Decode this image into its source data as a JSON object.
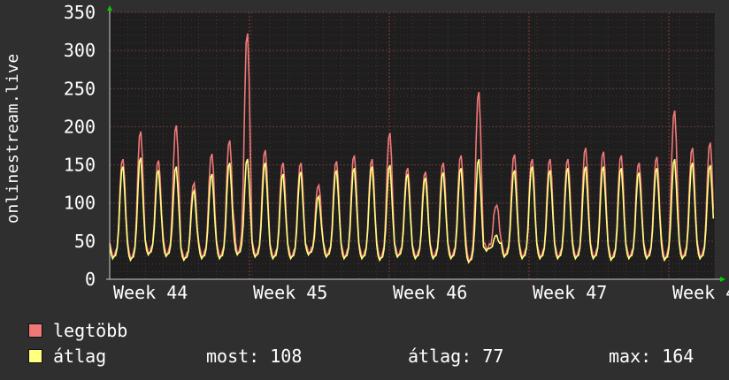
{
  "chart_data": {
    "type": "line",
    "ylabel": "onlinestream.live",
    "ylim": [
      0,
      350
    ],
    "yticks": [
      0,
      50,
      100,
      150,
      200,
      250,
      300,
      350
    ],
    "xlabels": [
      "Week 44",
      "Week 45",
      "Week 46",
      "Week 47",
      "Week 4"
    ],
    "grid": true,
    "colors": {
      "background": "#2f2f2f",
      "plot_bg": "#1e1e1e",
      "grid": "#6a3a3a",
      "axis_arrow": "#00cc00",
      "series_max": "#f07878",
      "series_avg": "#ffff80"
    },
    "daily": {
      "max_peaks": [
        160,
        197,
        158,
        205,
        128,
        167,
        185,
        328,
        172,
        155,
        155,
        125,
        157,
        165,
        160,
        195,
        148,
        143,
        155,
        165,
        250,
        98,
        166,
        160,
        160,
        160,
        175,
        170,
        165,
        155,
        163,
        225,
        175,
        182
      ],
      "avg_peaks": [
        150,
        162,
        145,
        150,
        118,
        140,
        155,
        160,
        155,
        140,
        143,
        110,
        145,
        148,
        150,
        152,
        140,
        135,
        142,
        148,
        160,
        58,
        145,
        150,
        145,
        148,
        150,
        150,
        148,
        142,
        148,
        160,
        155,
        152
      ],
      "troughs": [
        30,
        28,
        35,
        33,
        28,
        30,
        30,
        35,
        32,
        30,
        30,
        35,
        32,
        30,
        30,
        28,
        32,
        30,
        30,
        30,
        25,
        40,
        32,
        30,
        30,
        30,
        30,
        30,
        28,
        30,
        30,
        28,
        30,
        30
      ]
    }
  },
  "legend": {
    "items": [
      {
        "label": "legtöbb",
        "color": "#f07878"
      },
      {
        "label": "átlag",
        "color": "#ffff80"
      }
    ]
  },
  "stats": {
    "now_label": "most:",
    "now_value": "108",
    "avg_label": "átlag:",
    "avg_value": "77",
    "max_label": "max:",
    "max_value": "164"
  }
}
